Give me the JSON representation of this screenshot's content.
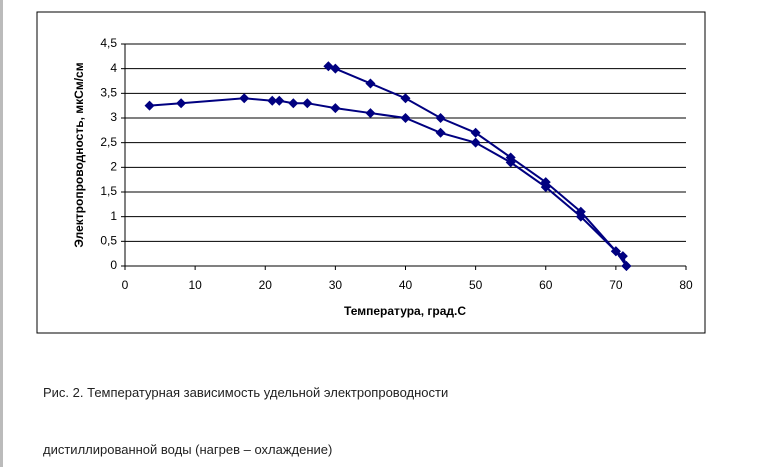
{
  "chart_data": {
    "type": "line",
    "xlabel": "Температура, град.С",
    "ylabel": "Электропроводность, мкСм/см",
    "xlim": [
      0,
      80
    ],
    "xticks": [
      0,
      10,
      20,
      30,
      40,
      50,
      60,
      70,
      80
    ],
    "ylim": [
      0,
      4.5
    ],
    "yticks": [
      0,
      {
        "value": 0.5,
        "label": "0,5"
      },
      1,
      {
        "value": 1.5,
        "label": "1,5"
      },
      2,
      {
        "value": 2.5,
        "label": "2,5"
      },
      3,
      {
        "value": 3.5,
        "label": "3,5"
      },
      4,
      {
        "value": 4.5,
        "label": "4,5"
      }
    ],
    "grid": true,
    "series": [
      {
        "color": "#000080",
        "x": [
          3.5,
          8,
          17,
          21,
          22,
          24,
          26,
          30,
          35,
          40,
          45,
          50,
          55,
          60,
          65,
          70,
          71.5
        ],
        "values": [
          3.25,
          3.3,
          3.4,
          3.35,
          3.35,
          3.3,
          3.3,
          3.2,
          3.1,
          3.0,
          2.7,
          2.5,
          2.1,
          1.6,
          1.0,
          0.3,
          0
        ]
      },
      {
        "color": "#000080",
        "x": [
          29,
          30,
          35,
          40,
          45,
          50,
          55,
          60,
          65,
          70,
          71,
          71.5
        ],
        "values": [
          4.05,
          4.0,
          3.7,
          3.4,
          3.0,
          2.7,
          2.2,
          1.7,
          1.1,
          0.3,
          0.2,
          0
        ]
      }
    ]
  },
  "caption": [
    "Рис. 2. Температурная зависимость удельной электропроводности",
    "дистиллированной воды (нагрев – охлаждение)"
  ]
}
